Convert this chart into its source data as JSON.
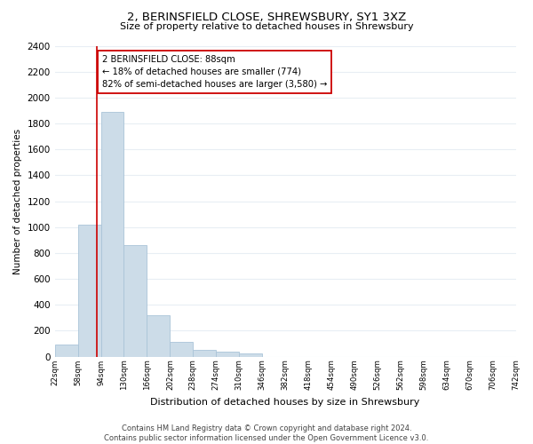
{
  "title": "2, BERINSFIELD CLOSE, SHREWSBURY, SY1 3XZ",
  "subtitle": "Size of property relative to detached houses in Shrewsbury",
  "xlabel": "Distribution of detached houses by size in Shrewsbury",
  "ylabel": "Number of detached properties",
  "bar_edges": [
    22,
    58,
    94,
    130,
    166,
    202,
    238,
    274,
    310,
    346,
    382,
    418,
    454,
    490,
    526,
    562,
    598,
    634,
    670,
    706,
    742
  ],
  "bar_heights": [
    90,
    1020,
    1890,
    860,
    320,
    115,
    50,
    35,
    25,
    0,
    0,
    0,
    0,
    0,
    0,
    0,
    0,
    0,
    0,
    0
  ],
  "bar_color": "#ccdce8",
  "bar_edgecolor": "#aac4d8",
  "property_line_x": 88,
  "property_line_color": "#cc0000",
  "annotation_line1": "2 BERINSFIELD CLOSE: 88sqm",
  "annotation_line2": "← 18% of detached houses are smaller (774)",
  "annotation_line3": "82% of semi-detached houses are larger (3,580) →",
  "annotation_box_edgecolor": "#cc0000",
  "ylim": [
    0,
    2400
  ],
  "yticks": [
    0,
    200,
    400,
    600,
    800,
    1000,
    1200,
    1400,
    1600,
    1800,
    2000,
    2200,
    2400
  ],
  "tick_labels": [
    "22sqm",
    "58sqm",
    "94sqm",
    "130sqm",
    "166sqm",
    "202sqm",
    "238sqm",
    "274sqm",
    "310sqm",
    "346sqm",
    "382sqm",
    "418sqm",
    "454sqm",
    "490sqm",
    "526sqm",
    "562sqm",
    "598sqm",
    "634sqm",
    "670sqm",
    "706sqm",
    "742sqm"
  ],
  "tick_positions": [
    22,
    58,
    94,
    130,
    166,
    202,
    238,
    274,
    310,
    346,
    382,
    418,
    454,
    490,
    526,
    562,
    598,
    634,
    670,
    706,
    742
  ],
  "footer_text": "Contains HM Land Registry data © Crown copyright and database right 2024.\nContains public sector information licensed under the Open Government Licence v3.0.",
  "bg_color": "#ffffff",
  "plot_bg_color": "#ffffff",
  "grid_color": "#e8eef4"
}
